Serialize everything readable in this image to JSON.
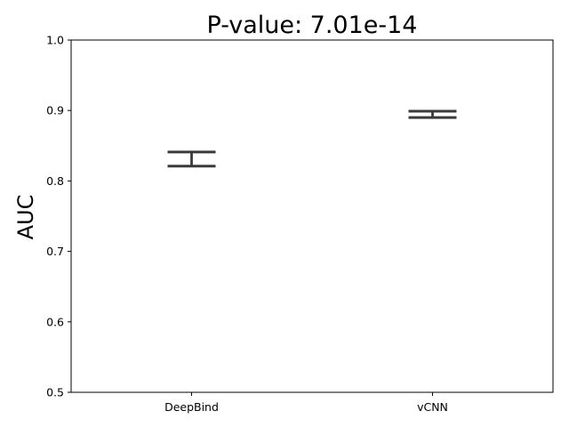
{
  "chart_data": {
    "type": "errorbar",
    "title": "P-value: 7.01e-14",
    "xlabel": "",
    "ylabel": "AUC",
    "categories": [
      "DeepBind",
      "vCNN"
    ],
    "intervals": [
      {
        "low": 0.821,
        "high": 0.841
      },
      {
        "low": 0.89,
        "high": 0.899
      }
    ],
    "ylim": [
      0.5,
      1.0
    ],
    "yticks": [
      "0.5",
      "0.6",
      "0.7",
      "0.8",
      "0.9",
      "1.0"
    ],
    "grid": false,
    "color": "#3a3a3a"
  }
}
